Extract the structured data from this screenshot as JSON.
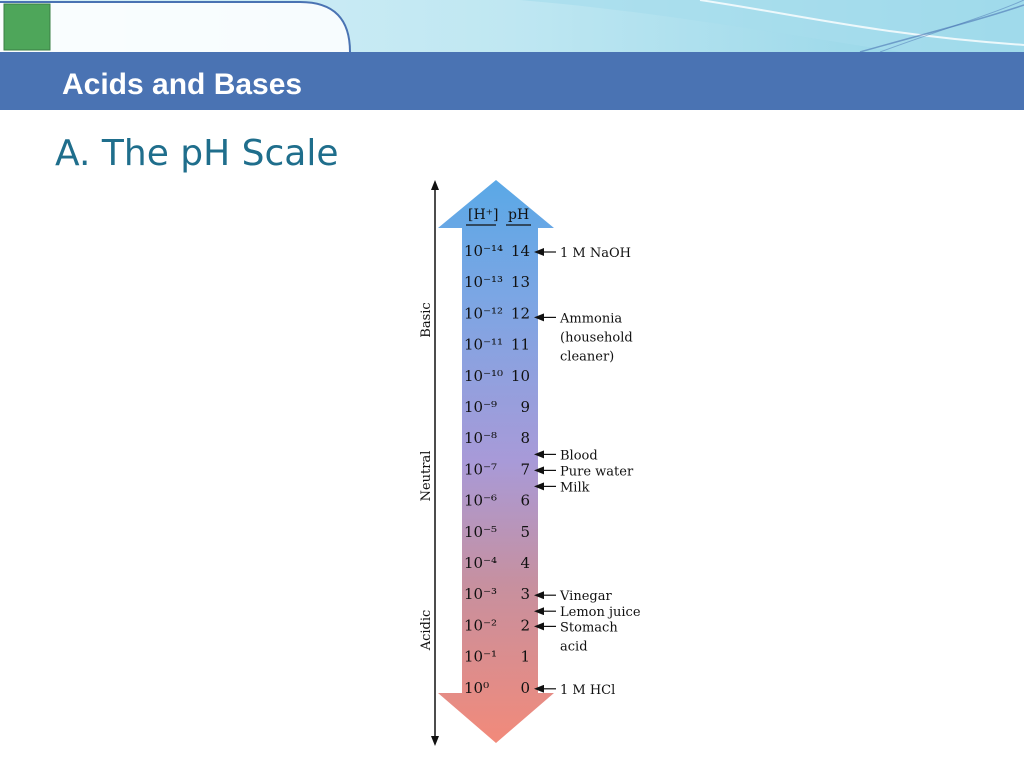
{
  "header": {
    "title": "Acids and Bases"
  },
  "slide": {
    "title": "A. The pH Scale"
  },
  "diagram": {
    "column_h": "[H⁺]",
    "column_ph": "pH",
    "side_labels": {
      "basic": "Basic",
      "neutral": "Neutral",
      "acidic": "Acidic"
    },
    "rows": [
      {
        "h": "10⁻¹⁴",
        "ph": "14"
      },
      {
        "h": "10⁻¹³",
        "ph": "13"
      },
      {
        "h": "10⁻¹²",
        "ph": "12"
      },
      {
        "h": "10⁻¹¹",
        "ph": "11"
      },
      {
        "h": "10⁻¹⁰",
        "ph": "10"
      },
      {
        "h": "10⁻⁹",
        "ph": "9"
      },
      {
        "h": "10⁻⁸",
        "ph": "8"
      },
      {
        "h": "10⁻⁷",
        "ph": "7"
      },
      {
        "h": "10⁻⁶",
        "ph": "6"
      },
      {
        "h": "10⁻⁵",
        "ph": "5"
      },
      {
        "h": "10⁻⁴",
        "ph": "4"
      },
      {
        "h": "10⁻³",
        "ph": "3"
      },
      {
        "h": "10⁻²",
        "ph": "2"
      },
      {
        "h": "10⁻¹",
        "ph": "1"
      },
      {
        "h": "10⁰",
        "ph": "0"
      }
    ],
    "annotations": [
      {
        "lines": [
          "1 M NaOH"
        ]
      },
      {
        "lines": [
          "Ammonia",
          "(household",
          " cleaner)"
        ]
      },
      {
        "lines": [
          "Blood"
        ]
      },
      {
        "lines": [
          "Pure water"
        ]
      },
      {
        "lines": [
          "Milk"
        ]
      },
      {
        "lines": [
          "Vinegar"
        ]
      },
      {
        "lines": [
          "Lemon juice"
        ]
      },
      {
        "lines": [
          "Stomach",
          "acid"
        ]
      },
      {
        "lines": [
          "1 M HCl"
        ]
      }
    ],
    "colors": {
      "basic": "#5aa8e6",
      "neutral": "#a89ad8",
      "acidic": "#f28a7a",
      "header": "#4a73b3",
      "title": "#1f6e8c"
    }
  }
}
